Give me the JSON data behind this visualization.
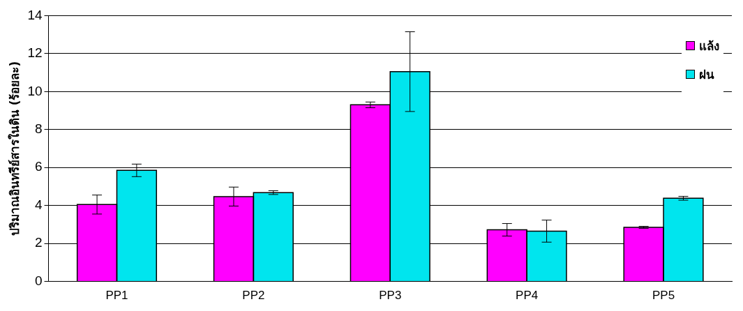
{
  "chart_data": {
    "type": "bar",
    "ylabel": "ปริมาณอินทรีย์สารในดิน (ร้อยละ)",
    "categories": [
      "PP1",
      "PP2",
      "PP3",
      "PP4",
      "PP5"
    ],
    "series": [
      {
        "name": "แล้ง",
        "color": "#ff00ff",
        "values": [
          4.05,
          4.47,
          9.3,
          2.72,
          2.85
        ],
        "errors": [
          0.5,
          0.5,
          0.15,
          0.33,
          0.05
        ]
      },
      {
        "name": "ฝน",
        "color": "#00e5ee",
        "values": [
          5.85,
          4.68,
          11.05,
          2.65,
          4.38
        ],
        "errors": [
          0.33,
          0.1,
          2.1,
          0.58,
          0.1
        ]
      }
    ],
    "ylim": [
      0,
      14
    ],
    "yticks": [
      0,
      2,
      4,
      6,
      8,
      10,
      12,
      14
    ],
    "grid": "y",
    "legend": "top right"
  }
}
